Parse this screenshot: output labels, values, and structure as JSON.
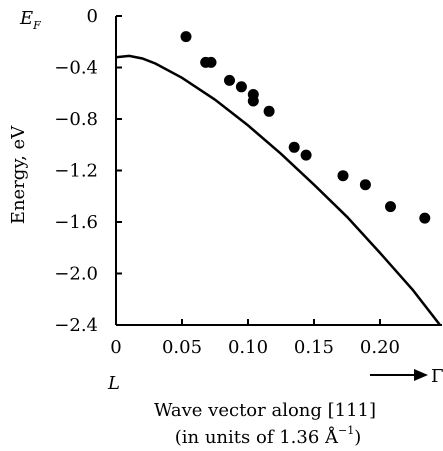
{
  "chart_data": {
    "type": "scatter",
    "title": "",
    "xlabel": "Wave vector along [111]",
    "xlabel_units_prefix": "(in units of 1.36 Å",
    "xlabel_units_exponent": "−1",
    "xlabel_units_suffix": ")",
    "ylabel": "Energy, eV",
    "y_top_label_main": "E",
    "y_top_label_sub": "F",
    "x_start_label": "L",
    "x_end_label": "Γ",
    "xlim": [
      0,
      0.247
    ],
    "ylim": [
      -2.4,
      0.0
    ],
    "x_ticks": [
      0,
      0.05,
      0.1,
      0.15,
      0.2
    ],
    "x_tick_labels": [
      "0",
      "0.05",
      "0.10",
      "0.15",
      "0.20"
    ],
    "y_ticks": [
      0,
      -0.4,
      -0.8,
      -1.2,
      -1.6,
      -2.0,
      -2.4
    ],
    "y_tick_labels": [
      "0",
      "−0.4",
      "−0.8",
      "−1.2",
      "−1.6",
      "−2.0",
      "−2.4"
    ],
    "grid": false,
    "legend": "none",
    "series": [
      {
        "kind": "scatter",
        "x": [
          0.053,
          0.068,
          0.072,
          0.086,
          0.095,
          0.104,
          0.104,
          0.116,
          0.135,
          0.144,
          0.172,
          0.189,
          0.208,
          0.234
        ],
        "y": [
          -0.16,
          -0.36,
          -0.36,
          -0.5,
          -0.55,
          -0.61,
          -0.66,
          -0.74,
          -1.02,
          -1.08,
          -1.24,
          -1.31,
          -1.48,
          -1.57
        ]
      },
      {
        "kind": "line",
        "x": [
          0.0,
          0.01,
          0.02,
          0.03,
          0.05,
          0.075,
          0.1,
          0.125,
          0.15,
          0.175,
          0.2,
          0.225,
          0.247
        ],
        "y": [
          -0.32,
          -0.31,
          -0.33,
          -0.37,
          -0.48,
          -0.65,
          -0.85,
          -1.07,
          -1.31,
          -1.56,
          -1.84,
          -2.13,
          -2.42
        ]
      }
    ]
  }
}
